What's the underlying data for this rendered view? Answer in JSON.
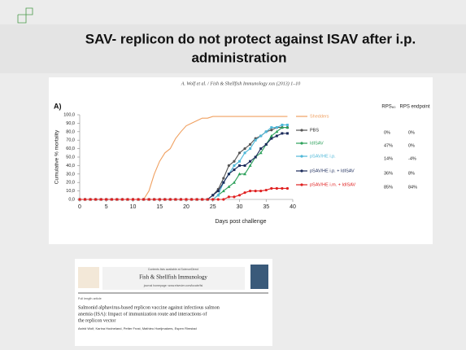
{
  "slide": {
    "title_line1": "SAV- replicon do not protect against ISAV after i.p.",
    "title_line2": "administration"
  },
  "chart_data": {
    "type": "line",
    "header": "A. Wolf et al. / Fish & Shellfish Immunology xxx (2013) 1–10",
    "panel": "A)",
    "x_label": "Days post challenge",
    "y_label": "Cumulative % mortality",
    "xlim": [
      0,
      40
    ],
    "xticks": [
      0,
      5,
      10,
      15,
      20,
      25,
      30,
      35,
      40
    ],
    "ylim": [
      0,
      100
    ],
    "yticks": [
      {
        "value": 0,
        "label": "0,0"
      },
      {
        "value": 10,
        "label": "10,0"
      },
      {
        "value": 20,
        "label": "20,0"
      },
      {
        "value": 30,
        "label": "30,0"
      },
      {
        "value": 40,
        "label": "40,0"
      },
      {
        "value": 50,
        "label": "50,0"
      },
      {
        "value": 60,
        "label": "60,0"
      },
      {
        "value": 70,
        "label": "70,0"
      },
      {
        "value": 80,
        "label": "80,0"
      },
      {
        "value": 90,
        "label": "90,0"
      },
      {
        "value": 100,
        "label": "100,0"
      }
    ],
    "rps_headers": [
      "RPS₆₀",
      "RPS endpoint"
    ],
    "x": [
      0,
      1,
      2,
      3,
      4,
      5,
      6,
      7,
      8,
      9,
      10,
      11,
      12,
      13,
      14,
      15,
      16,
      17,
      18,
      19,
      20,
      21,
      22,
      23,
      24,
      25,
      26,
      27,
      28,
      29,
      30,
      31,
      32,
      33,
      34,
      35,
      36,
      37,
      38,
      39
    ],
    "series": [
      {
        "name": "Shedders",
        "color": "#f0a060",
        "marker": "none",
        "rps": null,
        "values": [
          0,
          0,
          0,
          0,
          0,
          0,
          0,
          0,
          0,
          0,
          0,
          0,
          0,
          10,
          30,
          45,
          55,
          60,
          72,
          80,
          87,
          90,
          93,
          96,
          96,
          98,
          98,
          98,
          98,
          98,
          98,
          98,
          98,
          98,
          98,
          98,
          98,
          98,
          98,
          98
        ]
      },
      {
        "name": "PBS",
        "color": "#555555",
        "marker": "circle",
        "rps": [
          "0%",
          "0%"
        ],
        "values": [
          0,
          0,
          0,
          0,
          0,
          0,
          0,
          0,
          0,
          0,
          0,
          0,
          0,
          0,
          0,
          0,
          0,
          0,
          0,
          0,
          0,
          0,
          0,
          0,
          0,
          5,
          12,
          25,
          40,
          45,
          55,
          60,
          65,
          72,
          75,
          80,
          82,
          85,
          85,
          85
        ]
      },
      {
        "name": "IdISAV",
        "color": "#2ca05a",
        "marker": "triangle",
        "rps": [
          "47%",
          "0%"
        ],
        "values": [
          0,
          0,
          0,
          0,
          0,
          0,
          0,
          0,
          0,
          0,
          0,
          0,
          0,
          0,
          0,
          0,
          0,
          0,
          0,
          0,
          0,
          0,
          0,
          0,
          0,
          0,
          5,
          10,
          15,
          20,
          30,
          30,
          40,
          50,
          55,
          65,
          75,
          80,
          85,
          85
        ]
      },
      {
        "name": "pSAV/HE i.p.",
        "color": "#4fb8d8",
        "marker": "square",
        "rps": [
          "14%",
          "-4%"
        ],
        "values": [
          0,
          0,
          0,
          0,
          0,
          0,
          0,
          0,
          0,
          0,
          0,
          0,
          0,
          0,
          0,
          0,
          0,
          0,
          0,
          0,
          0,
          0,
          0,
          0,
          0,
          0,
          5,
          20,
          30,
          40,
          45,
          55,
          60,
          70,
          75,
          80,
          85,
          85,
          88,
          88
        ]
      },
      {
        "name": "pSAV/HE i.p. + IdISAV",
        "color": "#1a2a5a",
        "marker": "square",
        "rps": [
          "36%",
          "8%"
        ],
        "values": [
          0,
          0,
          0,
          0,
          0,
          0,
          0,
          0,
          0,
          0,
          0,
          0,
          0,
          0,
          0,
          0,
          0,
          0,
          0,
          0,
          0,
          0,
          0,
          0,
          0,
          5,
          10,
          20,
          30,
          35,
          40,
          40,
          45,
          50,
          60,
          65,
          72,
          75,
          78,
          78
        ]
      },
      {
        "name": "pSAV/HE i.m. + IdISAV",
        "color": "#e02020",
        "marker": "circle",
        "rps": [
          "85%",
          "84%"
        ],
        "values": [
          0,
          0,
          0,
          0,
          0,
          0,
          0,
          0,
          0,
          0,
          0,
          0,
          0,
          0,
          0,
          0,
          0,
          0,
          0,
          0,
          0,
          0,
          0,
          0,
          0,
          0,
          0,
          0,
          3,
          3,
          5,
          8,
          10,
          10,
          10,
          11,
          13,
          13,
          13,
          13
        ]
      }
    ]
  },
  "paper": {
    "contents": "Contents lists available at ScienceDirect",
    "journal": "Fish & Shellfish Immunology",
    "homepage": "journal homepage: www.elsevier.com/locate/fsi",
    "kind": "Full length article",
    "title": [
      "Salmonid alphavirus-based replicon vaccine against infectious salmon",
      "anemia (ISA): Impact of immunization route and interactions of",
      "the replicon vector"
    ],
    "authors": "Astrid Wolf, Karina Hodneland, Petter Frost, Mathieu Hoeijmakers, Espen Rimstad"
  }
}
